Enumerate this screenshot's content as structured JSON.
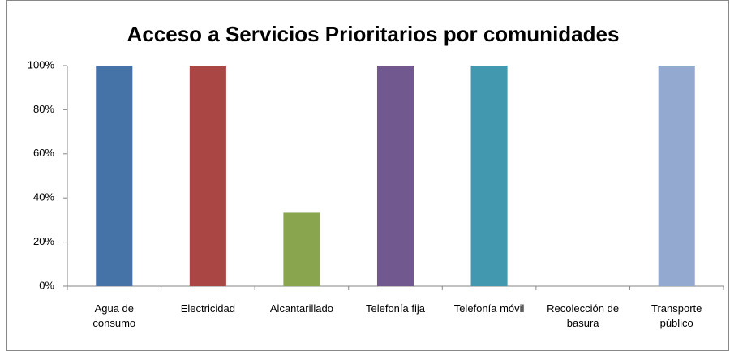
{
  "chart_data": {
    "type": "bar",
    "title": "Acceso a Servicios Prioritarios por comunidades",
    "categories": [
      "Agua de\nconsumo",
      "Electricidad",
      "Alcantarillado",
      "Telefonía fija",
      "Telefonía móvil",
      "Recolección de\nbasura",
      "Transporte\npúblico"
    ],
    "values": [
      100,
      100,
      33.3,
      100,
      100,
      0,
      100
    ],
    "colors": [
      "#4572a7",
      "#aa4643",
      "#89a54e",
      "#71588f",
      "#4198af",
      "#db843d",
      "#93a9cf"
    ],
    "ylim": [
      0,
      100
    ],
    "yticks": [
      {
        "value": 0,
        "label": "0%"
      },
      {
        "value": 20,
        "label": "20%"
      },
      {
        "value": 40,
        "label": "40%"
      },
      {
        "value": 60,
        "label": "60%"
      },
      {
        "value": 80,
        "label": "80%"
      },
      {
        "value": 100,
        "label": "100%"
      }
    ],
    "grid": false
  }
}
